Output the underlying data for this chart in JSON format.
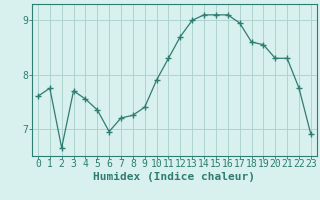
{
  "x": [
    0,
    1,
    2,
    3,
    4,
    5,
    6,
    7,
    8,
    9,
    10,
    11,
    12,
    13,
    14,
    15,
    16,
    17,
    18,
    19,
    20,
    21,
    22,
    23
  ],
  "y": [
    7.6,
    7.75,
    6.65,
    7.7,
    7.55,
    7.35,
    6.95,
    7.2,
    7.25,
    7.4,
    7.9,
    8.3,
    8.7,
    9.0,
    9.1,
    9.1,
    9.1,
    8.95,
    8.6,
    8.55,
    8.3,
    8.3,
    7.75,
    6.9
  ],
  "line_color": "#2e7d72",
  "marker": "+",
  "bg_color": "#d8f0ee",
  "grid_color": "#aed4cf",
  "axis_color": "#2e7d72",
  "xlabel": "Humidex (Indice chaleur)",
  "xlim": [
    -0.5,
    23.5
  ],
  "ylim": [
    6.5,
    9.3
  ],
  "yticks": [
    7,
    8,
    9
  ],
  "xticks": [
    0,
    1,
    2,
    3,
    4,
    5,
    6,
    7,
    8,
    9,
    10,
    11,
    12,
    13,
    14,
    15,
    16,
    17,
    18,
    19,
    20,
    21,
    22,
    23
  ],
  "tick_fontsize": 7,
  "label_fontsize": 8
}
